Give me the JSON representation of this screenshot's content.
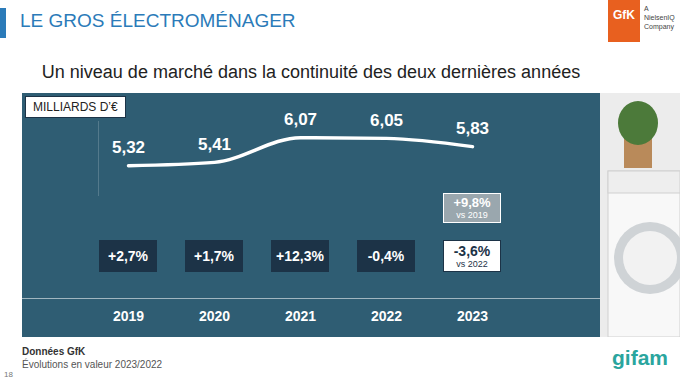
{
  "slide": {
    "header": "LE GROS ÉLECTROMÉNAGER",
    "logo": "GfK",
    "logo_tagline": "A NielsenIQ Company",
    "source": "Données GfK",
    "note": "Évolutions en valeur 2023/2022",
    "page": 18,
    "footer_logo": "gifam"
  },
  "chart_data": {
    "type": "line",
    "title": "Un niveau de marché dans la continuité des deux dernières années",
    "ylabel": "MILLIARDS D’€",
    "categories": [
      "2019",
      "2020",
      "2021",
      "2022",
      "2023"
    ],
    "values": [
      5.32,
      5.41,
      6.07,
      6.05,
      5.83
    ],
    "value_labels": [
      "5,32",
      "5,41",
      "6,07",
      "6,05",
      "5,83"
    ],
    "data_labels": true,
    "color": "#ffffff",
    "ylim": [
      4.5,
      6.5
    ],
    "yticks": [],
    "tick_labels": "x",
    "growth": {
      "values": [
        2.7,
        1.7,
        12.3,
        -0.4,
        -3.6
      ],
      "value_labels": [
        "+2,7%",
        "+1,7%",
        "+12,3%",
        "-0,4%",
        "-3,6%"
      ],
      "last_comparison": "vs 2022"
    },
    "comparison_2019": {
      "category": "2023",
      "value": 9.8,
      "label": "+9,8%",
      "text": "vs 2019"
    }
  }
}
